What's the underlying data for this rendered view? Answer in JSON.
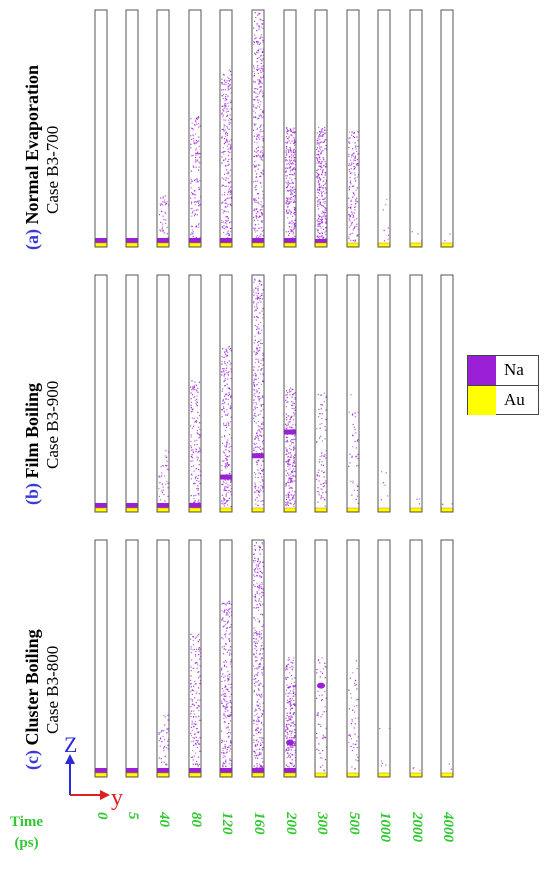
{
  "panels": [
    {
      "tag": "(a)",
      "title": "Normal Evaporation",
      "case": "Case B3-700"
    },
    {
      "tag": "(b)",
      "title": "Film Boiling",
      "case": "Case B3-900"
    },
    {
      "tag": "(c)",
      "title": "Cluster Boiling",
      "case": "Case B3-800"
    }
  ],
  "legend": {
    "items": [
      {
        "label": "Na",
        "color": "#9b1fd6"
      },
      {
        "label": "Au",
        "color": "#ffff00"
      }
    ]
  },
  "axes": {
    "z_label": "Z",
    "y_label": "y",
    "z_color": "#2a2ad6",
    "y_color": "#e02020"
  },
  "time": {
    "label_line1": "Time",
    "label_line2": "(ps)",
    "values": [
      "0",
      "5",
      "40",
      "80",
      "120",
      "160",
      "200",
      "300",
      "500",
      "1000",
      "2000",
      "4000"
    ],
    "color": "#32c832"
  }
}
